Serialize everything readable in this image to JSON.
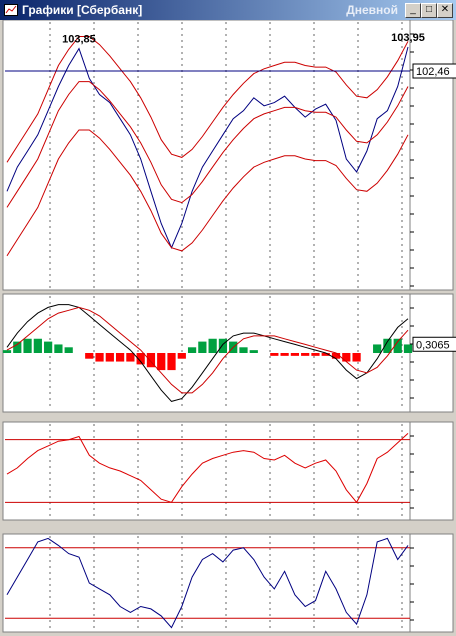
{
  "window": {
    "title": "Графики [Сбербанк]",
    "period": "Дневной"
  },
  "panels": [
    {
      "type": "price",
      "ylim": [
        89,
        105.5
      ],
      "series": [
        {
          "color": "#000080",
          "values": [
            95,
            96.5,
            97.5,
            98.5,
            100,
            101.5,
            102.8,
            103.85,
            102,
            101,
            100.5,
            99.5,
            98.5,
            97,
            95,
            93,
            91.5,
            93,
            95,
            96.5,
            97.5,
            98.5,
            99.5,
            100,
            100.8,
            100.3,
            100.5,
            100.9,
            100.2,
            99.6,
            100.1,
            100.4,
            99.4,
            97,
            96.2,
            97.5,
            99.5,
            100,
            101.5,
            103.95
          ]
        },
        {
          "color": "#cc0000",
          "values": [
            96.8,
            97.8,
            98.8,
            99.8,
            101.3,
            102.8,
            103.8,
            104.6,
            104.6,
            104.1,
            103.4,
            102.6,
            101.8,
            100.8,
            99.6,
            98.2,
            97.3,
            97.1,
            97.6,
            98.4,
            99.3,
            100.2,
            101,
            101.7,
            102.3,
            102.6,
            102.8,
            103,
            103,
            102.8,
            102.7,
            102.7,
            102.4,
            101.6,
            100.9,
            100.8,
            101.3,
            102.1,
            103.1,
            104.3
          ]
        },
        {
          "color": "#cc0000",
          "values": [
            94,
            95,
            96,
            97,
            98.5,
            100,
            101,
            101.8,
            101.8,
            101.3,
            100.6,
            99.8,
            99,
            98,
            96.8,
            95.4,
            94.5,
            94.3,
            94.8,
            95.6,
            96.5,
            97.4,
            98.2,
            98.9,
            99.5,
            99.8,
            100,
            100.2,
            100.2,
            100,
            99.9,
            99.9,
            99.6,
            98.8,
            98.1,
            98,
            98.5,
            99.3,
            100.3,
            101.5
          ]
        },
        {
          "color": "#cc0000",
          "values": [
            91,
            92,
            93,
            94,
            95.5,
            97,
            98,
            98.8,
            98.8,
            98.3,
            97.6,
            96.8,
            96,
            95,
            93.8,
            92.4,
            91.5,
            91.3,
            91.8,
            92.6,
            93.5,
            94.4,
            95.2,
            95.9,
            96.5,
            96.8,
            97,
            97.2,
            97.2,
            97,
            96.9,
            96.9,
            96.6,
            95.8,
            95.1,
            95,
            95.5,
            96.3,
            97.3,
            98.5
          ]
        }
      ],
      "peak_labels": [
        {
          "value": 103.85,
          "label": "103,85"
        },
        {
          "value": 103.95,
          "label": "103,95"
        }
      ],
      "current": {
        "value": 102.46,
        "label": "102,46"
      }
    },
    {
      "type": "macd",
      "ylim": [
        -2,
        2
      ],
      "up_color": "#00a040",
      "down_color": "#ff0000",
      "histogram": [
        0.1,
        0.4,
        0.5,
        0.5,
        0.4,
        0.3,
        0.2,
        0.0,
        -0.2,
        -0.3,
        -0.3,
        -0.3,
        -0.3,
        -0.4,
        -0.5,
        -0.6,
        -0.6,
        -0.2,
        0.2,
        0.4,
        0.5,
        0.5,
        0.4,
        0.2,
        0.1,
        0.0,
        -0.1,
        -0.1,
        -0.1,
        -0.1,
        -0.1,
        -0.1,
        -0.2,
        -0.3,
        -0.3,
        0.0,
        0.3,
        0.5,
        0.5,
        0.3
      ],
      "series": [
        {
          "color": "#000000",
          "values": [
            0.2,
            0.7,
            1.1,
            1.4,
            1.6,
            1.7,
            1.7,
            1.6,
            1.3,
            1.0,
            0.7,
            0.4,
            0.1,
            -0.3,
            -0.8,
            -1.3,
            -1.7,
            -1.6,
            -1.2,
            -0.7,
            -0.2,
            0.3,
            0.6,
            0.7,
            0.7,
            0.6,
            0.5,
            0.4,
            0.3,
            0.2,
            0.1,
            0.0,
            -0.2,
            -0.6,
            -0.9,
            -0.7,
            -0.2,
            0.4,
            0.9,
            1.2
          ]
        },
        {
          "color": "#cc0000",
          "values": [
            0.1,
            0.3,
            0.6,
            0.9,
            1.2,
            1.4,
            1.5,
            1.6,
            1.5,
            1.3,
            1.0,
            0.7,
            0.4,
            0.1,
            -0.3,
            -0.7,
            -1.1,
            -1.4,
            -1.4,
            -1.1,
            -0.7,
            -0.2,
            0.2,
            0.5,
            0.6,
            0.6,
            0.6,
            0.5,
            0.4,
            0.3,
            0.2,
            0.1,
            0.0,
            -0.3,
            -0.6,
            -0.7,
            -0.5,
            -0.1,
            0.4,
            0.8
          ]
        }
      ],
      "current": {
        "value": 0.3065,
        "label": "0,3065"
      }
    },
    {
      "type": "oscillator",
      "ylim": [
        20,
        80
      ],
      "levels": [
        30,
        70
      ],
      "level_color": "#cc0000",
      "series": [
        {
          "color": "#dd0000",
          "values": [
            48,
            52,
            58,
            63,
            66,
            69,
            70,
            72,
            60,
            55,
            52,
            50,
            47,
            44,
            38,
            32,
            30,
            40,
            48,
            55,
            58,
            60,
            62,
            63,
            62,
            58,
            57,
            60,
            55,
            52,
            55,
            57,
            50,
            38,
            30,
            42,
            58,
            62,
            68,
            74
          ]
        }
      ]
    },
    {
      "type": "oscillator",
      "ylim": [
        10,
        90
      ],
      "levels": [
        20,
        80
      ],
      "level_color": "#cc0000",
      "series": [
        {
          "color": "#000080",
          "values": [
            40,
            55,
            70,
            85,
            88,
            82,
            75,
            72,
            50,
            45,
            40,
            30,
            25,
            30,
            28,
            22,
            12,
            30,
            55,
            70,
            75,
            68,
            78,
            80,
            70,
            55,
            45,
            60,
            40,
            30,
            35,
            60,
            45,
            25,
            15,
            40,
            85,
            88,
            70,
            82
          ]
        }
      ]
    }
  ]
}
